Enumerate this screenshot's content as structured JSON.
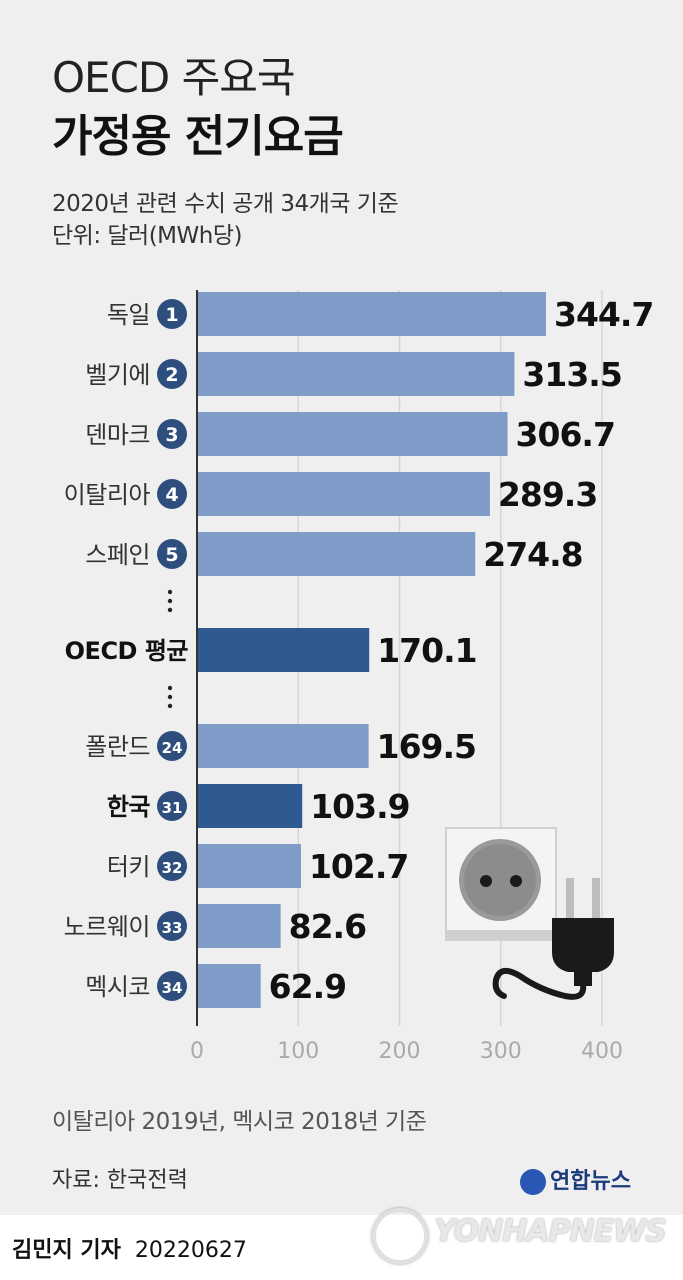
{
  "title_line1": "OECD 주요국",
  "title_line2": "가정용 전기요금",
  "subtitle_line1": "2020년 관련 수치 공개 34개국 기준",
  "subtitle_line2": "단위: 달러(MWh당)",
  "footnote": "이탈리아 2019년, 멕시코 2018년 기준",
  "source": "자료: 한국전력",
  "brand": "연합뉴스",
  "watermark": "YONHAPNEWS",
  "reporter": "김민지 기자",
  "date": "20220627",
  "chart_data": {
    "type": "bar",
    "orientation": "horizontal",
    "categories": [
      "독일",
      "벨기에",
      "덴마크",
      "이탈리아",
      "스페인",
      "OECD 평균",
      "폴란드",
      "한국",
      "터키",
      "노르웨이",
      "멕시코"
    ],
    "ranks": [
      "1",
      "2",
      "3",
      "4",
      "5",
      "",
      "24",
      "31",
      "32",
      "33",
      "34"
    ],
    "values": [
      344.7,
      313.5,
      306.7,
      289.3,
      274.8,
      170.1,
      169.5,
      103.9,
      102.7,
      82.6,
      62.9
    ],
    "highlight": [
      "OECD 평균",
      "한국"
    ],
    "gaps_after": [
      "스페인",
      "OECD 평균"
    ],
    "xlim": [
      0,
      400
    ],
    "xticks": [
      0,
      100,
      200,
      300,
      400
    ],
    "grid": true,
    "colors": {
      "bar": "#7f9cc9",
      "highlight": "#2f5a91",
      "badge": "#2e4f7d",
      "grid": "#d5d5d5"
    }
  }
}
